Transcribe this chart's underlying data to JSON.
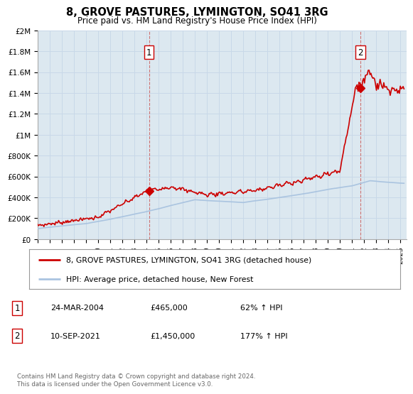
{
  "title": "8, GROVE PASTURES, LYMINGTON, SO41 3RG",
  "subtitle": "Price paid vs. HM Land Registry's House Price Index (HPI)",
  "ylabel_ticks": [
    "£0",
    "£200K",
    "£400K",
    "£600K",
    "£800K",
    "£1M",
    "£1.2M",
    "£1.4M",
    "£1.6M",
    "£1.8M",
    "£2M"
  ],
  "ytick_values": [
    0,
    200000,
    400000,
    600000,
    800000,
    1000000,
    1200000,
    1400000,
    1600000,
    1800000,
    2000000
  ],
  "ylim": [
    0,
    2000000
  ],
  "xlim_start": 1995.0,
  "xlim_end": 2025.5,
  "xtick_years": [
    1995,
    1996,
    1997,
    1998,
    1999,
    2000,
    2001,
    2002,
    2003,
    2004,
    2005,
    2006,
    2007,
    2008,
    2009,
    2010,
    2011,
    2012,
    2013,
    2014,
    2015,
    2016,
    2017,
    2018,
    2019,
    2020,
    2021,
    2022,
    2023,
    2024,
    2025
  ],
  "hpi_color": "#aac4e0",
  "price_color": "#cc0000",
  "marker_color": "#cc0000",
  "grid_color": "#c8d8e8",
  "plot_bg_color": "#dce8f0",
  "background_color": "#ffffff",
  "sale1_date": 2004.22,
  "sale1_price": 465000,
  "sale1_label": "1",
  "sale2_date": 2021.69,
  "sale2_price": 1450000,
  "sale2_label": "2",
  "legend_line1": "8, GROVE PASTURES, LYMINGTON, SO41 3RG (detached house)",
  "legend_line2": "HPI: Average price, detached house, New Forest",
  "note1_num": "1",
  "note1_date": "24-MAR-2004",
  "note1_price": "£465,000",
  "note1_pct": "62% ↑ HPI",
  "note2_num": "2",
  "note2_date": "10-SEP-2021",
  "note2_price": "£1,450,000",
  "note2_pct": "177% ↑ HPI",
  "footer": "Contains HM Land Registry data © Crown copyright and database right 2024.\nThis data is licensed under the Open Government Licence v3.0."
}
